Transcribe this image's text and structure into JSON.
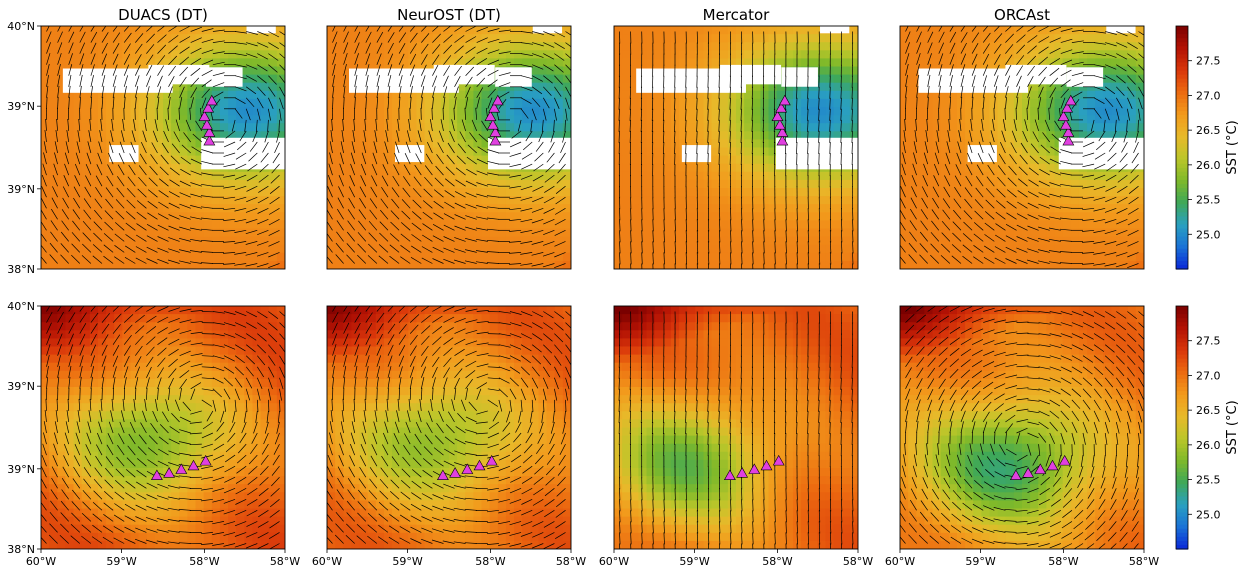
{
  "chart_data": {
    "type": "heatmap",
    "columns": [
      "DUACS (DT)",
      "NeurOST (DT)",
      "Mercator",
      "ORCAst"
    ],
    "rows": 2,
    "xlabel": "",
    "ylabel": "",
    "x_tick_labels": [
      "60°W",
      "59°W",
      "58°W",
      "58°W"
    ],
    "y_tick_labels": [
      "38°N",
      "39°N",
      "39°N",
      "40°N"
    ],
    "xlim": [
      -60,
      -58
    ],
    "ylim": [
      38,
      40
    ],
    "colorbar": {
      "label": "SST (°C)",
      "range": [
        24.5,
        28.0
      ],
      "ticks": [
        25.0,
        25.5,
        26.0,
        26.5,
        27.0,
        27.5
      ],
      "tick_labels": [
        "25.0",
        "25.5",
        "26.0",
        "26.5",
        "27.0",
        "27.5"
      ],
      "colors": [
        "#0a28d8",
        "#1a72d6",
        "#2aa0c0",
        "#3fa858",
        "#7fb92a",
        "#bcc62a",
        "#e8b92a",
        "#f29a1c",
        "#ec6a10",
        "#d9360a",
        "#b31204",
        "#7a0000"
      ]
    },
    "panels": [
      {
        "row": 0,
        "title": "DUACS (DT)",
        "field": {
          "cool_center": [
            -58.3,
            39.3
          ],
          "cool_min": 25.0,
          "background": 26.9,
          "warm_band": 27.6
        },
        "masked_clouds": true,
        "eddy": {
          "center": [
            -58.5,
            39.25
          ],
          "sense": "anticyclonic"
        },
        "track": [
          [
            -58.62,
            39.05
          ],
          [
            -58.62,
            39.12
          ],
          [
            -58.64,
            39.18
          ],
          [
            -58.66,
            39.25
          ],
          [
            -58.63,
            39.32
          ],
          [
            -58.6,
            39.38
          ]
        ]
      },
      {
        "row": 0,
        "title": "NeurOST (DT)",
        "field": {
          "cool_center": [
            -58.3,
            39.3
          ],
          "cool_min": 25.0,
          "background": 26.9,
          "warm_band": 27.6
        },
        "masked_clouds": true,
        "eddy": {
          "center": [
            -58.5,
            39.25
          ],
          "sense": "anticyclonic"
        },
        "track": [
          [
            -58.62,
            39.05
          ],
          [
            -58.62,
            39.12
          ],
          [
            -58.64,
            39.18
          ],
          [
            -58.66,
            39.25
          ],
          [
            -58.63,
            39.32
          ],
          [
            -58.6,
            39.38
          ]
        ]
      },
      {
        "row": 0,
        "title": "Mercator",
        "field": {
          "cool_center": [
            -58.3,
            39.3
          ],
          "cool_min": 25.0,
          "background": 26.9,
          "warm_band": 27.6
        },
        "masked_clouds": true,
        "eddy": {
          "center": [
            -58.7,
            39.2
          ],
          "sense": "southward"
        },
        "track": [
          [
            -58.62,
            39.05
          ],
          [
            -58.62,
            39.12
          ],
          [
            -58.64,
            39.18
          ],
          [
            -58.66,
            39.25
          ],
          [
            -58.63,
            39.32
          ],
          [
            -58.6,
            39.38
          ]
        ]
      },
      {
        "row": 0,
        "title": "ORCAst",
        "field": {
          "cool_center": [
            -58.3,
            39.3
          ],
          "cool_min": 25.0,
          "background": 26.9,
          "warm_band": 27.6
        },
        "masked_clouds": true,
        "eddy": {
          "center": [
            -58.5,
            39.25
          ],
          "sense": "anticyclonic"
        },
        "track": [
          [
            -58.62,
            39.05
          ],
          [
            -58.62,
            39.12
          ],
          [
            -58.64,
            39.18
          ],
          [
            -58.66,
            39.25
          ],
          [
            -58.63,
            39.32
          ],
          [
            -58.6,
            39.38
          ]
        ]
      },
      {
        "row": 1,
        "field": {
          "cool_center": [
            -59.1,
            38.9
          ],
          "cool_min": 25.7,
          "background": 27.2,
          "warm_band": 27.8
        },
        "masked_clouds": false,
        "eddy": {
          "center": [
            -58.7,
            39.2
          ],
          "sense": "anticyclonic"
        },
        "track": [
          [
            -59.05,
            38.6
          ],
          [
            -58.95,
            38.62
          ],
          [
            -58.85,
            38.65
          ],
          [
            -58.75,
            38.68
          ],
          [
            -58.65,
            38.72
          ]
        ]
      },
      {
        "row": 1,
        "field": {
          "cool_center": [
            -59.1,
            38.9
          ],
          "cool_min": 25.8,
          "background": 27.1,
          "warm_band": 27.8
        },
        "masked_clouds": false,
        "eddy": {
          "center": [
            -58.7,
            39.2
          ],
          "sense": "anticyclonic"
        },
        "track": [
          [
            -59.05,
            38.6
          ],
          [
            -58.95,
            38.62
          ],
          [
            -58.85,
            38.65
          ],
          [
            -58.75,
            38.68
          ],
          [
            -58.65,
            38.72
          ]
        ]
      },
      {
        "row": 1,
        "field": {
          "cool_center": [
            -59.4,
            38.7
          ],
          "cool_min": 25.7,
          "background": 27.1,
          "warm_band": 27.9
        },
        "masked_clouds": false,
        "eddy": {
          "center": [
            -58.7,
            39.2
          ],
          "sense": "southward"
        },
        "track": [
          [
            -59.05,
            38.6
          ],
          [
            -58.95,
            38.62
          ],
          [
            -58.85,
            38.65
          ],
          [
            -58.75,
            38.68
          ],
          [
            -58.65,
            38.72
          ]
        ]
      },
      {
        "row": 1,
        "field": {
          "cool_center": [
            -59.1,
            38.7
          ],
          "cool_min": 25.4,
          "background": 27.0,
          "warm_band": 27.9
        },
        "masked_clouds": false,
        "eddy": {
          "center": [
            -59.0,
            38.85
          ],
          "sense": "anticyclonic"
        },
        "track": [
          [
            -59.05,
            38.6
          ],
          [
            -58.95,
            38.62
          ],
          [
            -58.85,
            38.65
          ],
          [
            -58.75,
            38.68
          ],
          [
            -58.65,
            38.72
          ]
        ]
      }
    ],
    "track_color": "#e040e0",
    "arrow_color": "#000000",
    "legend": "none",
    "grid": false
  }
}
